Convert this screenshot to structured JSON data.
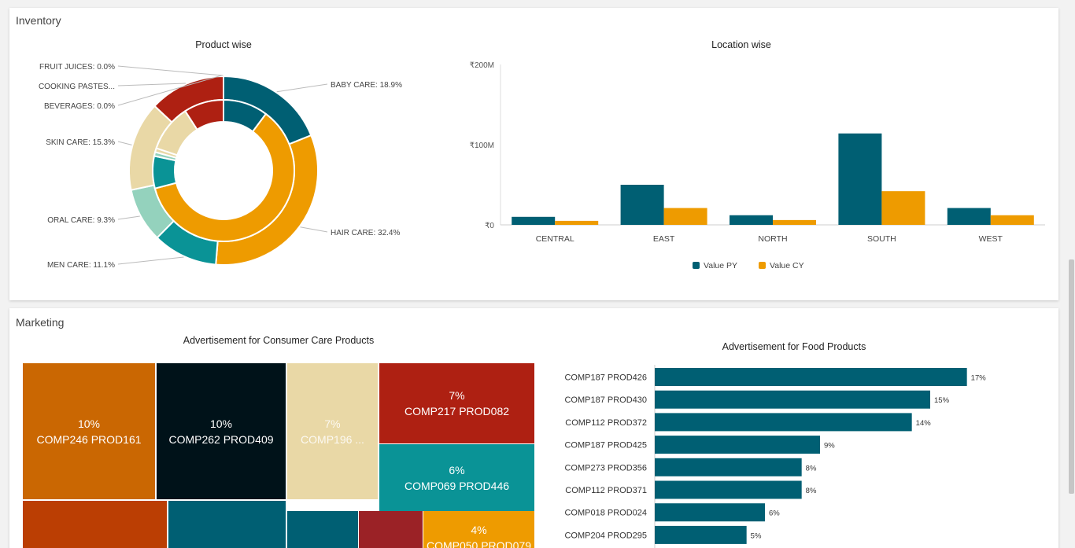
{
  "colors": {
    "teal_dark": "#005f73",
    "orange": "#ee9b00",
    "teal": "#0a9396",
    "mint": "#94d2bd",
    "beige": "#e9d8a6",
    "red": "#ae2012",
    "dark_orange": "#ca6702",
    "rust": "#bb3e03",
    "crimson": "#9b2226",
    "navy_black": "#001219"
  },
  "inventory": {
    "title": "Inventory"
  },
  "marketing": {
    "title": "Marketing"
  },
  "chart_data": [
    {
      "id": "product-wise",
      "type": "pie",
      "subtype": "nested-donut",
      "title": "Product wise",
      "slices": [
        {
          "label": "BABY CARE: 18.9%",
          "name": "BABY CARE",
          "value": 18.9,
          "color": "#005f73"
        },
        {
          "label": "HAIR CARE: 32.4%",
          "name": "HAIR CARE",
          "value": 32.4,
          "color": "#ee9b00"
        },
        {
          "label": "MEN CARE: 11.1%",
          "name": "MEN CARE",
          "value": 11.1,
          "color": "#0a9396"
        },
        {
          "label": "ORAL CARE: 9.3%",
          "name": "ORAL CARE",
          "value": 9.3,
          "color": "#94d2bd"
        },
        {
          "label": "SKIN CARE: 15.3%",
          "name": "SKIN CARE",
          "value": 15.3,
          "color": "#e9d8a6"
        },
        {
          "label": "BEVERAGES: 0.0%",
          "name": "BEVERAGES",
          "value": 0.0,
          "color": "#ae2012"
        },
        {
          "label": "COOKING PASTES...",
          "name": "COOKING PASTES",
          "value": 13.0,
          "color": "#ae2012"
        },
        {
          "label": "FRUIT JUICES: 0.0%",
          "name": "FRUIT JUICES",
          "value": 0.0,
          "color": "#9b2226"
        }
      ],
      "inner_ring": [
        {
          "value": 9.0,
          "color": "#005f73"
        },
        {
          "value": 53.5,
          "color": "#ee9b00"
        },
        {
          "value": 6.5,
          "color": "#0a9396"
        },
        {
          "value": 0.8,
          "color": "#94d2bd"
        },
        {
          "value": 0.8,
          "color": "#e9d8a6"
        },
        {
          "value": 9.5,
          "color": "#e9d8a6"
        },
        {
          "value": 8.0,
          "color": "#ae2012"
        }
      ]
    },
    {
      "id": "location-wise",
      "type": "bar",
      "title": "Location wise",
      "categories": [
        "CENTRAL",
        "EAST",
        "NORTH",
        "SOUTH",
        "WEST"
      ],
      "series": [
        {
          "name": "Value PY",
          "values": [
            10,
            50,
            12,
            114,
            21
          ],
          "color": "#005f73"
        },
        {
          "name": "Value CY",
          "values": [
            5,
            21,
            6,
            42,
            12
          ],
          "color": "#ee9b00"
        }
      ],
      "yticks": [
        {
          "value": 0,
          "label": "₹0"
        },
        {
          "value": 100,
          "label": "₹100M"
        },
        {
          "value": 200,
          "label": "₹200M"
        }
      ],
      "ylim": [
        0,
        200
      ],
      "legend": "bottom-center"
    },
    {
      "id": "consumer-care-ads",
      "type": "treemap",
      "title": "Advertisement for Consumer Care Products",
      "items": [
        {
          "pct": "10%",
          "label": "COMP246 PROD161",
          "color": "#ca6702"
        },
        {
          "pct": "10%",
          "label": "COMP262 PROD409",
          "color": "#001219"
        },
        {
          "pct": "7%",
          "label": "COMP196 ...",
          "color": "#e9d8a6"
        },
        {
          "pct": "7%",
          "label": "COMP217 PROD082",
          "color": "#ae2012"
        },
        {
          "pct": "6%",
          "label": "COMP069 PROD446",
          "color": "#0a9396"
        },
        {
          "pct": "",
          "label": "",
          "color": "#bb3e03"
        },
        {
          "pct": "",
          "label": "",
          "color": "#005f73"
        },
        {
          "pct": "",
          "label": "",
          "color": "#005f73"
        },
        {
          "pct": "",
          "label": "",
          "color": "#9b2226"
        },
        {
          "pct": "4%",
          "label": "COMP050 PROD079",
          "color": "#ee9b00"
        }
      ]
    },
    {
      "id": "food-ads",
      "type": "bar",
      "orientation": "horizontal",
      "title": "Advertisement for Food Products",
      "categories": [
        "COMP187 PROD426",
        "COMP187 PROD430",
        "COMP112 PROD372",
        "COMP187 PROD425",
        "COMP273 PROD356",
        "COMP112 PROD371",
        "COMP018 PROD024",
        "COMP204 PROD295"
      ],
      "values": [
        17,
        15,
        14,
        9,
        8,
        8,
        6,
        5
      ],
      "value_labels": [
        "17%",
        "15%",
        "14%",
        "9%",
        "8%",
        "8%",
        "6%",
        "5%"
      ],
      "xlim": [
        0,
        17.4
      ],
      "color": "#005f73"
    }
  ]
}
